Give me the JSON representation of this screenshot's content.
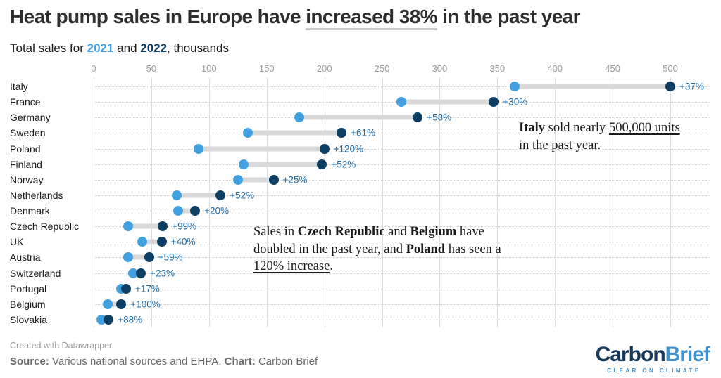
{
  "header": {
    "title_segments": [
      {
        "t": "Heat pump sales in Europe have "
      },
      {
        "t": "increased 38%",
        "u": true
      },
      {
        "t": " in the past year"
      }
    ],
    "subtitle_segments": [
      {
        "t": "Total sales for "
      },
      {
        "t": "2021",
        "b": true,
        "c": "y2021"
      },
      {
        "t": " and "
      },
      {
        "t": "2022",
        "b": true,
        "c": "y2022"
      },
      {
        "t": ", thousands"
      }
    ]
  },
  "chart_data": {
    "type": "dumbbell-range",
    "title": "Heat pump sales in Europe have increased 38% in the past year",
    "subtitle": "Total sales for 2021 and 2022, thousands",
    "unit": "thousands of units",
    "axis": {
      "min": 0,
      "max": 500,
      "ticks": [
        0,
        50,
        100,
        150,
        200,
        250,
        300,
        350,
        400,
        450,
        500
      ],
      "position": "top",
      "grid": true
    },
    "series_labels": {
      "start": "2021",
      "end": "2022"
    },
    "rows": [
      {
        "country": "Italy",
        "y2021": 365,
        "y2022": 500,
        "change": "+37%"
      },
      {
        "country": "France",
        "y2021": 267,
        "y2022": 347,
        "change": "+30%"
      },
      {
        "country": "Germany",
        "y2021": 178,
        "y2022": 281,
        "change": "+58%"
      },
      {
        "country": "Sweden",
        "y2021": 134,
        "y2022": 215,
        "change": "+61%"
      },
      {
        "country": "Poland",
        "y2021": 91,
        "y2022": 200,
        "change": "+120%"
      },
      {
        "country": "Finland",
        "y2021": 130,
        "y2022": 198,
        "change": "+52%"
      },
      {
        "country": "Norway",
        "y2021": 125,
        "y2022": 156,
        "change": "+25%"
      },
      {
        "country": "Netherlands",
        "y2021": 72,
        "y2022": 110,
        "change": "+52%"
      },
      {
        "country": "Denmark",
        "y2021": 73,
        "y2022": 88,
        "change": "+20%"
      },
      {
        "country": "Czech Republic",
        "y2021": 30,
        "y2022": 60,
        "change": "+99%"
      },
      {
        "country": "UK",
        "y2021": 42,
        "y2022": 59,
        "change": "+40%"
      },
      {
        "country": "Austria",
        "y2021": 30,
        "y2022": 48,
        "change": "+59%"
      },
      {
        "country": "Switzerland",
        "y2021": 34,
        "y2022": 41,
        "change": "+23%"
      },
      {
        "country": "Portugal",
        "y2021": 24,
        "y2022": 28,
        "change": "+17%"
      },
      {
        "country": "Belgium",
        "y2021": 12,
        "y2022": 24,
        "change": "+100%"
      },
      {
        "country": "Slovakia",
        "y2021": 7,
        "y2022": 13,
        "change": "+88%"
      }
    ]
  },
  "annotations": [
    {
      "segments": [
        {
          "t": "Italy",
          "b": true
        },
        {
          "t": " sold nearly "
        },
        {
          "t": "500,000 units",
          "u": true
        },
        {
          "t": " in the past year."
        }
      ]
    },
    {
      "segments": [
        {
          "t": "Sales in "
        },
        {
          "t": "Czech Republic",
          "b": true
        },
        {
          "t": " and "
        },
        {
          "t": "Belgium",
          "b": true
        },
        {
          "t": " have doubled in the past year, and "
        },
        {
          "t": "Poland",
          "b": true
        },
        {
          "t": " has seen a "
        },
        {
          "t": "120% increase",
          "u": true
        },
        {
          "t": "."
        }
      ]
    }
  ],
  "footer": {
    "credit": "Created with Datawrapper",
    "source_segments": [
      {
        "t": "Source:",
        "b": true
      },
      {
        "t": " Various national sources and EHPA. "
      },
      {
        "t": "Chart:",
        "b": true
      },
      {
        "t": " Carbon Brief"
      }
    ],
    "logo": {
      "part1": "Carbon",
      "part2": "Brief",
      "tagline": "CLEAR ON CLIMATE"
    }
  },
  "colors": {
    "y2021": "#42a0e0",
    "y2022": "#0d3e63",
    "pct": "#1d6ba8",
    "bar": "#d9d9d9",
    "grid": "#dddddd",
    "rowline": "#cfcfcf",
    "title": "#2e2e2e",
    "tick": "#9c9c9c",
    "label": "#1a1a1a",
    "credit": "#9b9b9b",
    "source": "#696969",
    "logo_dark": "#16395b",
    "logo_light": "#4292cf"
  }
}
